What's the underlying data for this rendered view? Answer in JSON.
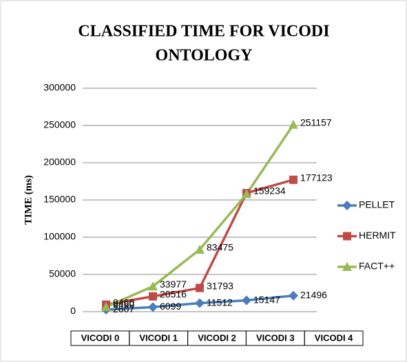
{
  "chart_data": {
    "type": "line",
    "title": [
      "CLASSIFIED TIME FOR VICODI",
      "ONTOLOGY"
    ],
    "y_label": "TIME (ms)",
    "categories": [
      "VICODI 0",
      "VICODI 1",
      "VICODI 2",
      "VICODI 3",
      "VICODI 4"
    ],
    "series": [
      {
        "name": "PELLET",
        "color": "#4a7ebb",
        "marker": "diamond",
        "values": [
          2607,
          6099,
          11512,
          15147,
          21496
        ]
      },
      {
        "name": "HERMIT",
        "color": "#be4b48",
        "marker": "square",
        "values": [
          9460,
          20516,
          31793,
          159234,
          177123
        ]
      },
      {
        "name": "FACT++",
        "color": "#98b954",
        "marker": "triangle",
        "values": [
          6460,
          33977,
          83475,
          158000,
          251157
        ],
        "value_labels": [
          "6460",
          "33977",
          "83475",
          null,
          "251157"
        ]
      }
    ],
    "ylim": [
      0,
      300000
    ],
    "yticks": [
      0,
      50000,
      100000,
      150000,
      200000,
      250000,
      300000
    ],
    "grid": true,
    "legend": "right"
  }
}
